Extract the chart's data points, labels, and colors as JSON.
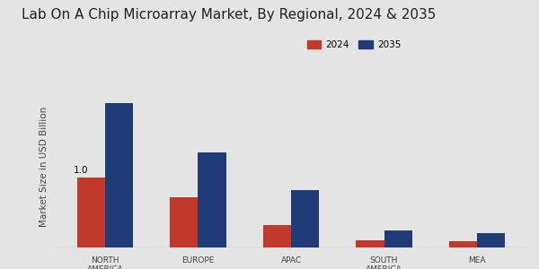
{
  "title": "Lab On A Chip Microarray Market, By Regional, 2024 & 2035",
  "ylabel": "Market Size in USD Billion",
  "categories": [
    "NORTH\nAMERICA",
    "EUROPE",
    "APAC",
    "SOUTH\nAMERICA",
    "MEA"
  ],
  "values_2024": [
    1.0,
    0.72,
    0.32,
    0.1,
    0.09
  ],
  "values_2035": [
    2.05,
    1.35,
    0.82,
    0.24,
    0.21
  ],
  "color_2024": "#c0392b",
  "color_2035": "#1f3c78",
  "fig_bg_color": "#e4e4e4",
  "plot_bg_color": "#e4e4e4",
  "bar_width": 0.3,
  "annotation_text": "1.0",
  "legend_labels": [
    "2024",
    "2035"
  ],
  "title_fontsize": 11,
  "axis_label_fontsize": 7.5,
  "tick_fontsize": 6.5,
  "bottom_stripe_color": "#c0392b",
  "dashed_line_color": "#999999"
}
